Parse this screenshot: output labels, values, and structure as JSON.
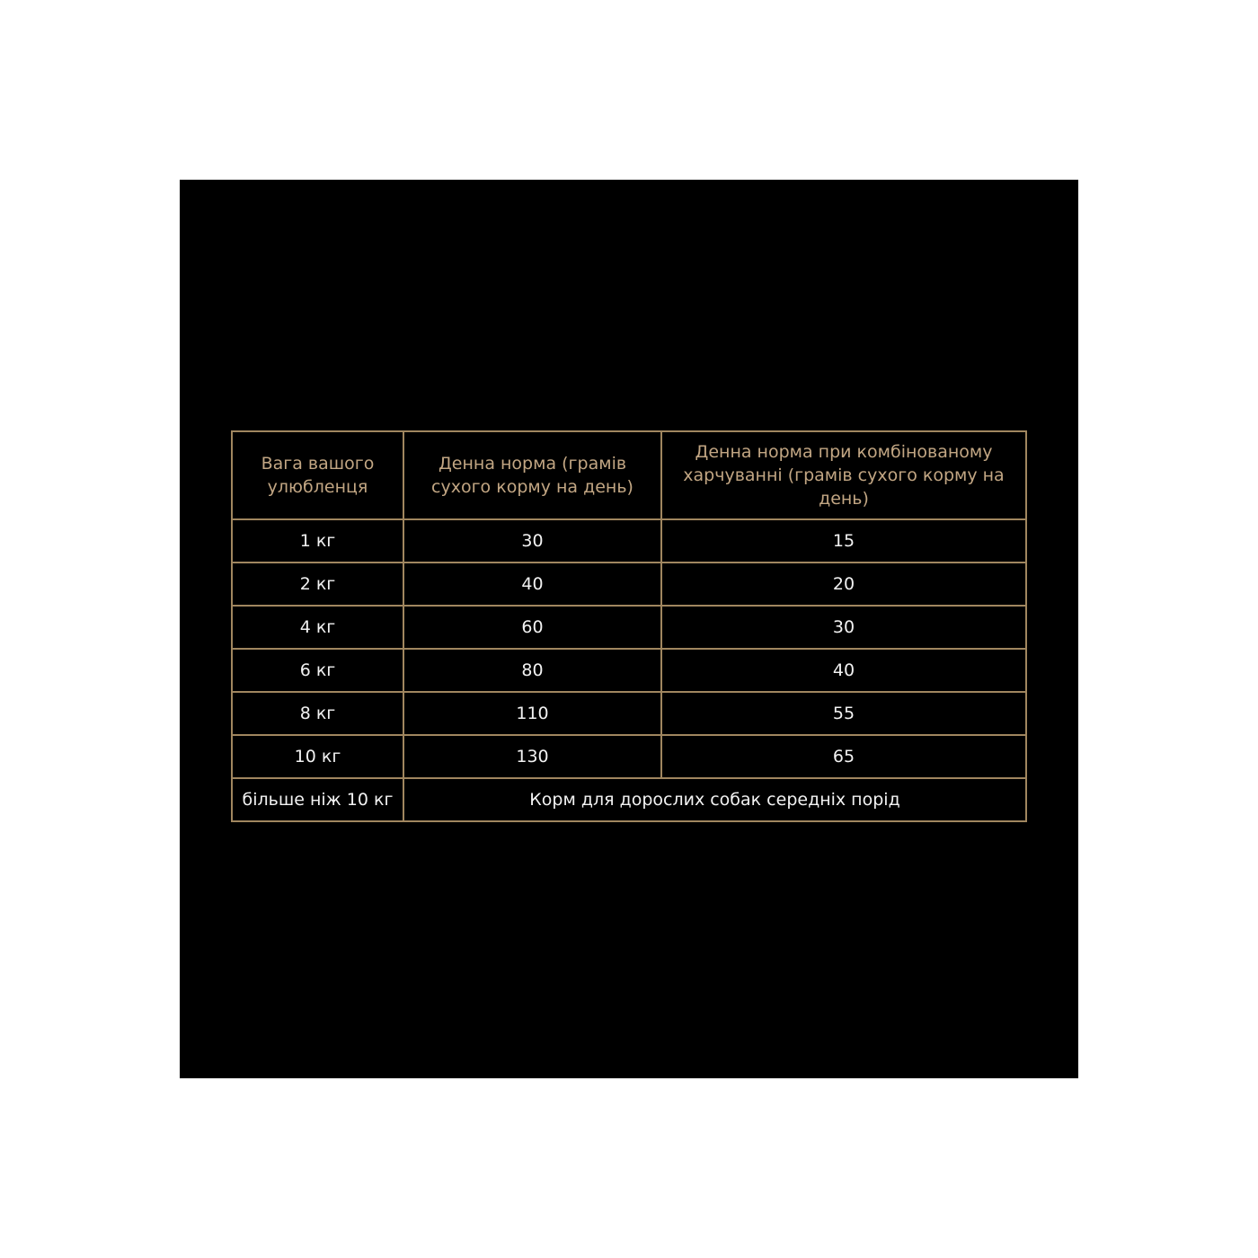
{
  "colors": {
    "background": "#000000",
    "border": "#a0865f",
    "header_text": "#c2a683",
    "cell_text": "#f2f2f2"
  },
  "table": {
    "headers": [
      "Вага вашого улюбленця",
      "Денна норма (грамів сухого корму на день)",
      "Денна норма при комбінованому харчуванні (грамів сухого корму на день)"
    ],
    "rows": [
      [
        "1 кг",
        "30",
        "15"
      ],
      [
        "2 кг",
        "40",
        "20"
      ],
      [
        "4 кг",
        "60",
        "30"
      ],
      [
        "6 кг",
        "80",
        "40"
      ],
      [
        "8 кг",
        "110",
        "55"
      ],
      [
        "10 кг",
        "130",
        "65"
      ]
    ],
    "last_row": {
      "weight": "більше ніж 10 кг",
      "note": "Корм для дорослих собак середніх порід"
    }
  }
}
